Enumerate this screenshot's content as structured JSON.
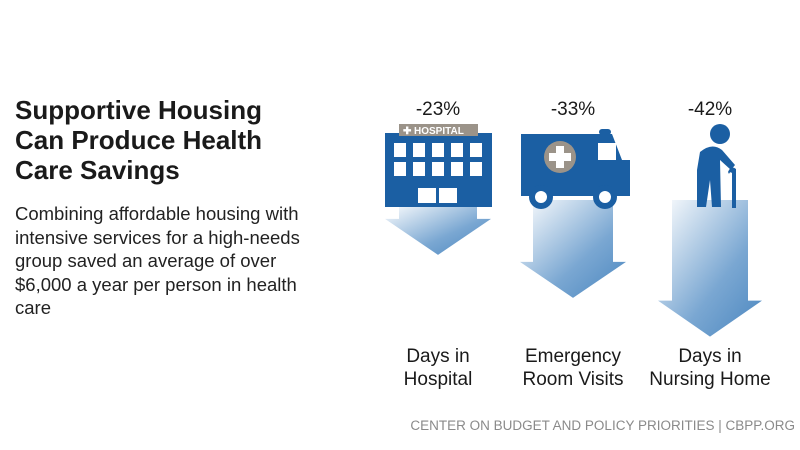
{
  "title": "Supportive Housing Can Produce Health Care Savings",
  "description": "Combining affordable housing with intensive services for a high-needs group saved an average of over $6,000 a year per person in health care",
  "source": "CENTER ON BUDGET AND POLICY PRIORITIES | CBPP.ORG",
  "colors": {
    "icon_blue": "#1b5fa3",
    "arrow_dark": "#4a86bf",
    "arrow_light": "#ffffff",
    "sign_gray": "#9b9389"
  },
  "chart_data": {
    "type": "bar",
    "orientation": "downward-arrows",
    "categories": [
      {
        "line1": "Days in",
        "line2": "Hospital",
        "icon": "hospital-icon"
      },
      {
        "line1": "Emergency",
        "line2": "Room Visits",
        "icon": "ambulance-icon"
      },
      {
        "line1": "Days in",
        "line2": "Nursing Home",
        "icon": "elderly-person-cane-icon"
      }
    ],
    "values": [
      -23,
      -33,
      -42
    ],
    "value_labels": [
      "-23%",
      "-33%",
      "-42%"
    ],
    "hospital_sign": "HOSPITAL"
  }
}
